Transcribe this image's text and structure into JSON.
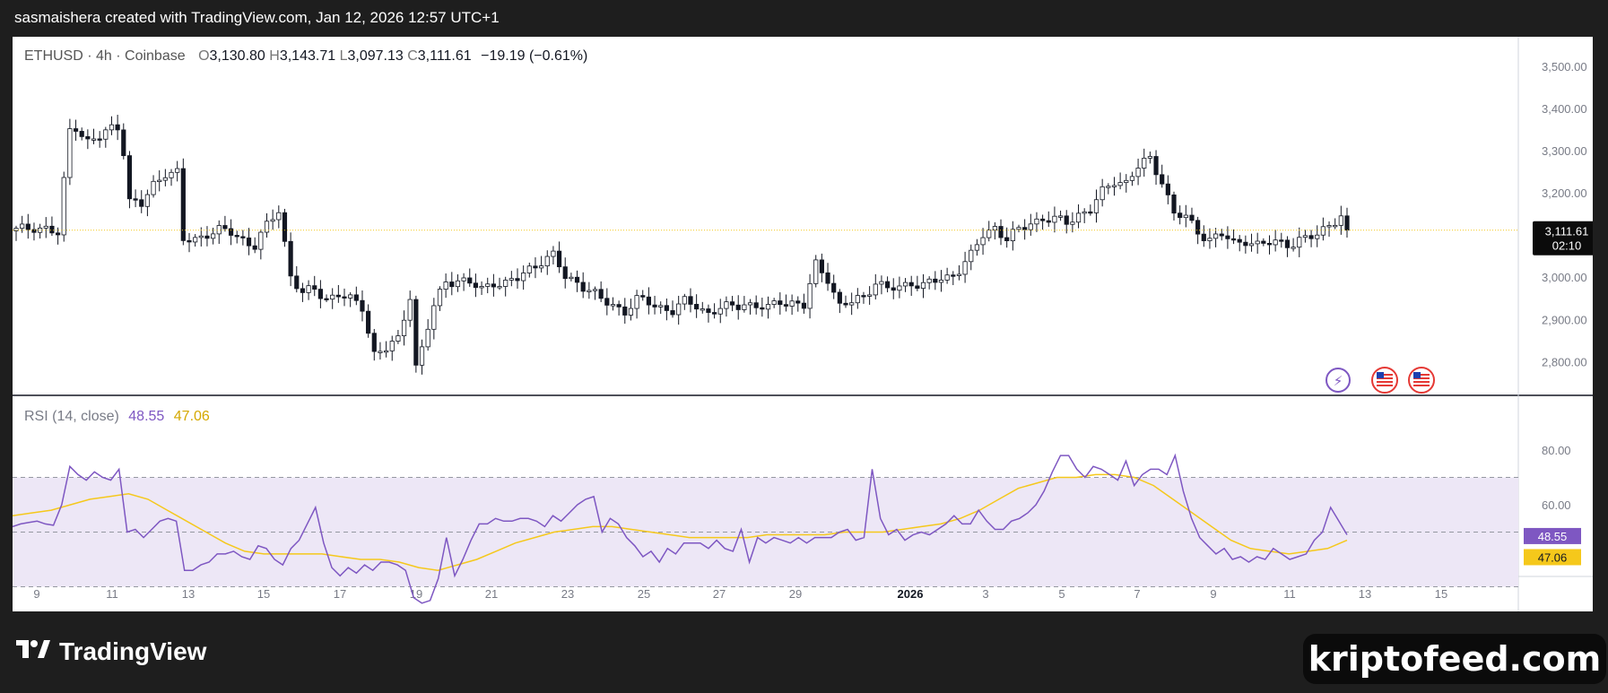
{
  "attribution": "sasmaishera created with TradingView.com, Jan 12, 2026 12:57 UTC+1",
  "legend": {
    "symbol": "ETHUSD · 4h · Coinbase",
    "open_label": "O",
    "open": "3,130.80",
    "high_label": "H",
    "high": "3,143.71",
    "low_label": "L",
    "low": "3,097.13",
    "close_label": "C",
    "close": "3,111.61",
    "change": "−19.19 (−0.61%)"
  },
  "rsi_legend": {
    "label": "RSI (14, close)",
    "rsi_value": "48.55",
    "ma_value": "47.06"
  },
  "price_tag": {
    "price": "3,111.61",
    "countdown": "02:10"
  },
  "branding": {
    "logo_text": "TradingView",
    "watermark": "kriptofeed.com"
  },
  "colors": {
    "candle_up": "#ffffff",
    "candle_down": "#131722",
    "rsi_line": "#7e57c2",
    "rsi_ma": "#f5c81b",
    "rsi_band": "#ede7f6",
    "price_line": "#f5c81b"
  },
  "icons": [
    "flash-event-icon",
    "us-flag-icon",
    "us-flag-icon"
  ],
  "chart_data": [
    {
      "type": "candlestick",
      "title": "ETHUSD · 4h · Coinbase",
      "ylim": [
        2720,
        3570
      ],
      "y_ticks": [
        "3,500.00",
        "3,400.00",
        "3,300.00",
        "3,200.00",
        "3,000.00",
        "2,900.00",
        "2,800.00"
      ],
      "x_ticks": [
        "9",
        "11",
        "13",
        "15",
        "17",
        "19",
        "21",
        "23",
        "25",
        "27",
        "29",
        "2026",
        "3",
        "5",
        "7",
        "9",
        "11",
        "13",
        "15"
      ],
      "last_price": 3111.61,
      "close_path": [
        [
          0,
          3110
        ],
        [
          3,
          3120
        ],
        [
          5,
          3115
        ],
        [
          7,
          3100
        ],
        [
          9,
          3350
        ],
        [
          10,
          3360
        ],
        [
          12,
          3320
        ],
        [
          14,
          3330
        ],
        [
          16,
          3355
        ],
        [
          17,
          3360
        ],
        [
          18,
          3300
        ],
        [
          19,
          3180
        ],
        [
          21,
          3170
        ],
        [
          23,
          3220
        ],
        [
          25,
          3250
        ],
        [
          27,
          3245
        ],
        [
          28,
          3085
        ],
        [
          30,
          3090
        ],
        [
          32,
          3105
        ],
        [
          34,
          3110
        ],
        [
          36,
          3105
        ],
        [
          38,
          3090
        ],
        [
          40,
          3075
        ],
        [
          42,
          3120
        ],
        [
          44,
          3160
        ],
        [
          46,
          3005
        ],
        [
          48,
          2960
        ],
        [
          50,
          2970
        ],
        [
          52,
          2950
        ],
        [
          54,
          2960
        ],
        [
          56,
          2945
        ],
        [
          58,
          2930
        ],
        [
          60,
          2820
        ],
        [
          62,
          2830
        ],
        [
          64,
          2850
        ],
        [
          66,
          2960
        ],
        [
          67,
          2790
        ],
        [
          68,
          2830
        ],
        [
          70,
          2930
        ],
        [
          72,
          2990
        ],
        [
          74,
          2995
        ],
        [
          76,
          2985
        ],
        [
          78,
          2970
        ],
        [
          80,
          2990
        ],
        [
          82,
          2985
        ],
        [
          84,
          2995
        ],
        [
          86,
          3020
        ],
        [
          88,
          3040
        ],
        [
          90,
          3050
        ],
        [
          92,
          3000
        ],
        [
          94,
          2990
        ],
        [
          96,
          2970
        ],
        [
          98,
          2945
        ],
        [
          100,
          2935
        ],
        [
          102,
          2920
        ],
        [
          104,
          2945
        ],
        [
          106,
          2940
        ],
        [
          108,
          2930
        ],
        [
          110,
          2920
        ],
        [
          112,
          2940
        ],
        [
          114,
          2935
        ],
        [
          116,
          2915
        ],
        [
          118,
          2925
        ],
        [
          120,
          2930
        ],
        [
          122,
          2940
        ],
        [
          124,
          2930
        ],
        [
          126,
          2925
        ],
        [
          128,
          2945
        ],
        [
          130,
          2940
        ],
        [
          132,
          2930
        ],
        [
          134,
          3030
        ],
        [
          136,
          3000
        ],
        [
          138,
          2930
        ],
        [
          140,
          2940
        ],
        [
          142,
          2955
        ],
        [
          144,
          2990
        ],
        [
          146,
          2970
        ],
        [
          148,
          2975
        ],
        [
          150,
          2990
        ],
        [
          152,
          2980
        ],
        [
          154,
          2990
        ],
        [
          156,
          3000
        ],
        [
          158,
          3020
        ],
        [
          160,
          3050
        ],
        [
          162,
          3100
        ],
        [
          164,
          3120
        ],
        [
          166,
          3090
        ],
        [
          168,
          3110
        ],
        [
          170,
          3130
        ],
        [
          172,
          3140
        ],
        [
          174,
          3135
        ],
        [
          176,
          3130
        ],
        [
          178,
          3150
        ],
        [
          180,
          3160
        ],
        [
          182,
          3200
        ],
        [
          184,
          3230
        ],
        [
          186,
          3225
        ],
        [
          188,
          3260
        ],
        [
          190,
          3280
        ],
        [
          192,
          3230
        ],
        [
          194,
          3150
        ],
        [
          196,
          3140
        ],
        [
          198,
          3110
        ],
        [
          200,
          3090
        ],
        [
          202,
          3100
        ],
        [
          204,
          3080
        ],
        [
          206,
          3090
        ],
        [
          208,
          3075
        ],
        [
          210,
          3080
        ],
        [
          212,
          3085
        ],
        [
          214,
          3080
        ],
        [
          216,
          3090
        ],
        [
          218,
          3100
        ],
        [
          220,
          3130
        ],
        [
          222,
          3140
        ],
        [
          223,
          3112
        ]
      ]
    },
    {
      "type": "line",
      "title": "RSI (14, close)",
      "ylim": [
        0,
        100
      ],
      "y_ticks": [
        "80.00",
        "60.00"
      ],
      "band": [
        30,
        70
      ],
      "midline": 50,
      "series": [
        {
          "name": "RSI",
          "values": [
            52,
            53,
            53.5,
            54,
            53,
            52.5,
            60,
            74,
            71,
            69,
            72,
            70,
            69,
            73,
            50,
            51,
            48,
            51,
            54,
            55,
            54,
            36,
            36,
            38,
            39,
            42,
            42,
            43,
            41,
            40,
            45,
            44,
            40,
            38,
            44,
            47,
            53,
            59,
            46,
            37,
            34,
            37,
            35,
            38,
            36,
            39,
            39,
            38,
            36,
            26,
            24,
            25,
            33,
            48,
            34,
            40,
            47,
            53,
            53,
            55,
            54,
            54,
            55,
            55,
            54,
            52,
            56,
            54,
            57,
            60,
            62,
            63,
            50,
            55,
            53,
            48,
            45,
            41,
            43,
            39,
            44,
            42,
            46,
            46,
            46,
            44,
            47,
            44,
            43,
            51,
            39,
            48,
            46,
            48,
            47,
            46,
            48,
            46,
            48,
            48,
            48,
            50,
            51,
            47,
            48,
            73,
            55,
            49,
            51,
            47,
            49,
            50,
            49,
            51,
            53,
            56,
            53,
            53,
            58,
            54,
            51,
            51,
            54,
            55,
            57,
            60,
            65,
            72,
            78,
            78,
            73,
            70,
            74,
            73,
            71,
            69,
            76,
            67,
            71,
            73,
            73,
            71,
            78,
            65,
            55,
            48,
            45,
            42,
            44,
            40,
            41,
            39,
            41,
            40,
            44,
            42,
            40,
            41,
            42,
            47,
            50,
            59,
            54,
            49
          ]
        },
        {
          "name": "RSI-based MA",
          "values": [
            56,
            57,
            58,
            60,
            62,
            63,
            64,
            62,
            58,
            54,
            50,
            46,
            43,
            42,
            42,
            42,
            42,
            41,
            40,
            40,
            39,
            37,
            36,
            38,
            40,
            43,
            46,
            48,
            50,
            51,
            52,
            52,
            51,
            50,
            49,
            48,
            48,
            48,
            48,
            49,
            49,
            49,
            49,
            50,
            50,
            50,
            51,
            52,
            53,
            55,
            58,
            62,
            66,
            68,
            70,
            70,
            71,
            71,
            70,
            67,
            62,
            57,
            52,
            47,
            44,
            43,
            42,
            43,
            44,
            47
          ]
        }
      ]
    }
  ]
}
